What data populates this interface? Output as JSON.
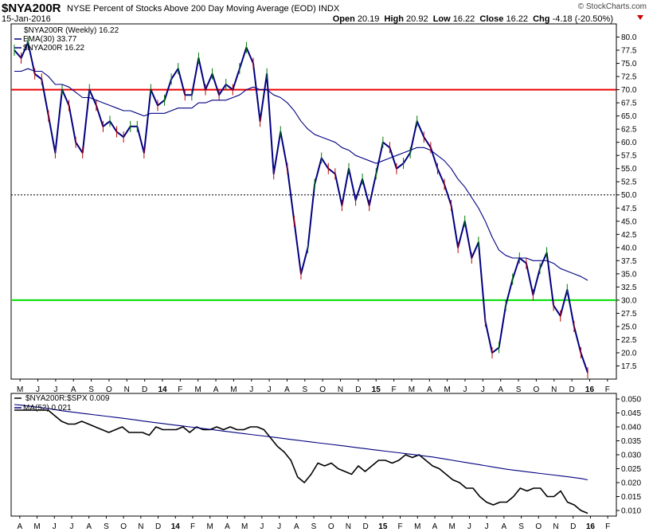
{
  "header": {
    "symbol": "$NYA200R",
    "description": "NYSE Percent of Stocks Above 200 Day Moving Average (EOD)",
    "exchange": "INDX",
    "date": "15-Jan-2016",
    "copyright": "© StockCharts.com",
    "open_label": "Open",
    "open": "20.19",
    "high_label": "High",
    "high": "20.92",
    "low_label": "Low",
    "low": "16.22",
    "close_label": "Close",
    "close": "16.22",
    "chg_label": "Chg",
    "chg": "-4.18 (-20.50%)",
    "down_color": "#cc0000"
  },
  "chart_data": [
    {
      "type": "line",
      "title": "$NYA200R (Weekly) 16.22",
      "ylim": [
        15,
        82.5
      ],
      "y_ticks": [
        "17.5",
        "20.0",
        "22.5",
        "25.0",
        "27.5",
        "30.0",
        "32.5",
        "35.0",
        "37.5",
        "40.0",
        "42.5",
        "45.0",
        "47.5",
        "50.0",
        "52.5",
        "55.0",
        "57.5",
        "60.0",
        "62.5",
        "65.0",
        "67.5",
        "70.0",
        "72.5",
        "75.0",
        "77.5",
        "80.0"
      ],
      "x_ticks": [
        "M",
        "J",
        "J",
        "A",
        "S",
        "O",
        "N",
        "D",
        "14",
        "F",
        "M",
        "A",
        "M",
        "J",
        "J",
        "A",
        "S",
        "O",
        "N",
        "D",
        "15",
        "F",
        "M",
        "A",
        "M",
        "J",
        "J",
        "A",
        "S",
        "O",
        "N",
        "D",
        "16",
        "F"
      ],
      "reference_lines": [
        {
          "value": 70,
          "color": "#ee0000",
          "style": "solid"
        },
        {
          "value": 50,
          "color": "#000000",
          "style": "dotted"
        },
        {
          "value": 30,
          "color": "#00dd00",
          "style": "solid"
        }
      ],
      "series": [
        {
          "name": "$NYA200R 16.22",
          "color": "#000080",
          "values": [
            77.5,
            76.0,
            79.0,
            73.0,
            72.0,
            65.0,
            58.0,
            70.0,
            67.0,
            60.0,
            58.0,
            70.0,
            67.0,
            63.0,
            64.0,
            62.0,
            61.0,
            63.0,
            63.0,
            58.0,
            70.0,
            67.0,
            68.0,
            72.0,
            74.0,
            69.0,
            69.0,
            76.0,
            70.0,
            73.0,
            69.0,
            71.0,
            70.0,
            74.0,
            78.0,
            75.0,
            64.0,
            73.0,
            54.0,
            62.0,
            55.0,
            45.0,
            35.0,
            40.0,
            52.0,
            57.0,
            55.0,
            54.0,
            48.0,
            55.0,
            49.0,
            53.0,
            48.0,
            54.0,
            60.0,
            59.0,
            55.0,
            56.0,
            58.0,
            64.0,
            61.0,
            59.0,
            55.0,
            52.0,
            48.0,
            40.0,
            45.0,
            38.0,
            41.0,
            26.0,
            20.0,
            21.0,
            29.0,
            34.0,
            38.0,
            37.0,
            31.0,
            36.0,
            39.0,
            29.0,
            27.0,
            32.0,
            25.0,
            20.0,
            16.22
          ]
        },
        {
          "name": "EMA(30) 33.77",
          "color": "#000080",
          "values": [
            73.5,
            73.5,
            74.0,
            73.5,
            73.5,
            72.5,
            71.0,
            71.0,
            70.5,
            69.5,
            68.5,
            68.5,
            68.0,
            67.5,
            67.0,
            66.5,
            66.0,
            66.0,
            65.5,
            65.0,
            65.5,
            65.5,
            65.5,
            66.0,
            66.5,
            66.5,
            66.5,
            67.5,
            67.5,
            68.0,
            68.0,
            68.0,
            68.5,
            69.0,
            70.0,
            70.5,
            70.0,
            70.0,
            69.0,
            68.5,
            67.5,
            66.0,
            64.0,
            62.5,
            61.5,
            61.0,
            60.5,
            60.0,
            59.0,
            58.5,
            57.5,
            57.0,
            56.5,
            56.0,
            56.5,
            57.0,
            57.5,
            58.0,
            58.5,
            59.0,
            59.0,
            58.5,
            57.5,
            56.5,
            55.0,
            53.0,
            51.5,
            49.5,
            47.5,
            45.0,
            42.0,
            39.5,
            38.5,
            38.0,
            38.0,
            38.0,
            37.5,
            37.5,
            37.5,
            37.0,
            36.0,
            35.5,
            35.0,
            34.5,
            33.77
          ]
        }
      ]
    },
    {
      "type": "line",
      "title": "$NYA200R:$SPX 0.009",
      "ylim": [
        0.008,
        0.052
      ],
      "y_ticks": [
        "0.010",
        "0.015",
        "0.020",
        "0.025",
        "0.030",
        "0.035",
        "0.040",
        "0.045",
        "0.050"
      ],
      "x_ticks": [
        "A",
        "M",
        "J",
        "J",
        "A",
        "S",
        "O",
        "N",
        "D",
        "14",
        "F",
        "M",
        "A",
        "M",
        "J",
        "J",
        "A",
        "S",
        "O",
        "N",
        "D",
        "15",
        "F",
        "M",
        "A",
        "M",
        "J",
        "J",
        "A",
        "S",
        "O",
        "N",
        "D",
        "16",
        "F"
      ],
      "series": [
        {
          "name": "$NYA200R:$SPX 0.009",
          "color": "#000000",
          "values": [
            0.046,
            0.046,
            0.046,
            0.046,
            0.046,
            0.046,
            0.044,
            0.042,
            0.041,
            0.041,
            0.042,
            0.041,
            0.04,
            0.039,
            0.038,
            0.039,
            0.04,
            0.038,
            0.038,
            0.038,
            0.037,
            0.04,
            0.039,
            0.039,
            0.039,
            0.04,
            0.038,
            0.04,
            0.039,
            0.039,
            0.04,
            0.039,
            0.04,
            0.039,
            0.039,
            0.04,
            0.04,
            0.039,
            0.036,
            0.033,
            0.031,
            0.028,
            0.022,
            0.02,
            0.023,
            0.027,
            0.026,
            0.027,
            0.025,
            0.024,
            0.023,
            0.026,
            0.024,
            0.026,
            0.028,
            0.028,
            0.027,
            0.028,
            0.03,
            0.029,
            0.03,
            0.028,
            0.026,
            0.025,
            0.023,
            0.021,
            0.02,
            0.018,
            0.018,
            0.015,
            0.013,
            0.012,
            0.013,
            0.013,
            0.015,
            0.018,
            0.017,
            0.018,
            0.018,
            0.015,
            0.015,
            0.017,
            0.013,
            0.012,
            0.01,
            0.009
          ]
        },
        {
          "name": "MA(52) 0.021",
          "color": "#000080",
          "values": [
            0.048,
            0.0478,
            0.0475,
            0.0472,
            0.0469,
            0.0466,
            0.0462,
            0.0458,
            0.0455,
            0.0452,
            0.0449,
            0.0446,
            0.0443,
            0.044,
            0.0437,
            0.0434,
            0.0431,
            0.0428,
            0.0425,
            0.0421,
            0.0418,
            0.0415,
            0.0412,
            0.0409,
            0.0406,
            0.0403,
            0.04,
            0.0397,
            0.0394,
            0.0391,
            0.0388,
            0.0385,
            0.0382,
            0.0379,
            0.0376,
            0.0373,
            0.037,
            0.0367,
            0.0364,
            0.0361,
            0.0358,
            0.0355,
            0.0352,
            0.0349,
            0.0346,
            0.0343,
            0.034,
            0.0337,
            0.0334,
            0.0331,
            0.0328,
            0.0325,
            0.0322,
            0.0319,
            0.0316,
            0.0313,
            0.031,
            0.0307,
            0.0304,
            0.0301,
            0.0298,
            0.0295,
            0.0292,
            0.0288,
            0.0284,
            0.028,
            0.0276,
            0.0272,
            0.0268,
            0.0264,
            0.026,
            0.0256,
            0.0252,
            0.0248,
            0.0245,
            0.0242,
            0.0239,
            0.0236,
            0.0233,
            0.023,
            0.0227,
            0.0224,
            0.0221,
            0.0218,
            0.0215,
            0.021
          ]
        }
      ]
    }
  ]
}
